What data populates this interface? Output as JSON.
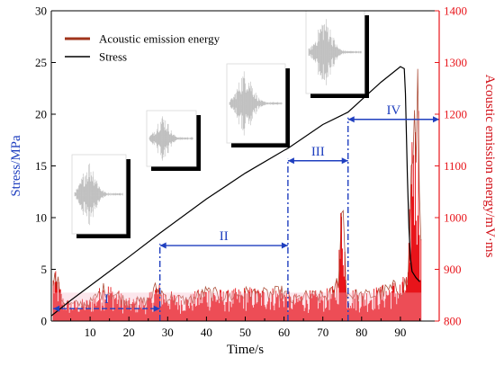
{
  "chart_data": {
    "type": "line",
    "xlabel": "Time/s",
    "ylabel_left": "Stress/MPa",
    "ylabel_right": "Acoustic emission energy/mV·ms",
    "xlim": [
      0,
      100
    ],
    "ylim_left": [
      0,
      30
    ],
    "ylim_right": [
      800,
      1400
    ],
    "x_ticks": [
      "10",
      "20",
      "30",
      "40",
      "50",
      "60",
      "70",
      "80",
      "90"
    ],
    "y_left_ticks": [
      "0",
      "5",
      "10",
      "15",
      "20",
      "25",
      "30"
    ],
    "y_right_ticks": [
      "800",
      "900",
      "1000",
      "1100",
      "1200",
      "1300",
      "1400"
    ],
    "legend": [
      {
        "name": "Acoustic emission energy",
        "color": "#a0341b"
      },
      {
        "name": "Stress",
        "color": "#000000"
      }
    ],
    "series": [
      {
        "name": "Stress",
        "axis": "left",
        "x": [
          0,
          5,
          10,
          20,
          28,
          40,
          50,
          60,
          61,
          70,
          76.5,
          80,
          85,
          90,
          91,
          91.3,
          91.8,
          92.2,
          92.6,
          93,
          94,
          95
        ],
        "y": [
          0.5,
          2.0,
          3.4,
          6.2,
          8.5,
          11.8,
          14.3,
          16.5,
          16.7,
          19.0,
          20.2,
          21.4,
          23.1,
          24.6,
          24.4,
          22.0,
          14.0,
          9.0,
          6.0,
          4.8,
          4.2,
          3.8
        ]
      },
      {
        "name": "Acoustic emission energy",
        "axis": "right",
        "x": [
          0.5,
          1.5,
          3,
          5,
          10,
          14,
          20,
          25,
          27,
          30,
          35,
          40,
          45,
          50,
          55,
          60,
          62,
          65,
          70,
          73,
          74,
          74.5,
          75,
          75.5,
          76,
          80,
          85,
          88,
          90,
          92,
          93,
          93.5,
          94,
          94.5,
          95,
          95.5
        ],
        "y": [
          900,
          895,
          850,
          840,
          845,
          880,
          845,
          850,
          880,
          860,
          850,
          870,
          860,
          868,
          865,
          870,
          850,
          860,
          860,
          870,
          910,
          1010,
          1080,
          1040,
          870,
          860,
          870,
          880,
          880,
          900,
          1220,
          1300,
          1160,
          1310,
          1150,
          880
        ]
      }
    ],
    "stages": [
      {
        "label": "I",
        "x_start": 0.5,
        "x_end": 28,
        "y": 1.2
      },
      {
        "label": "II",
        "x_start": 28,
        "x_end": 61,
        "y": 7.3
      },
      {
        "label": "III",
        "x_start": 61,
        "x_end": 76.5,
        "y": 15.5
      },
      {
        "label": "IV",
        "x_start": 76.5,
        "x_end": 100,
        "y": 19.5
      }
    ]
  }
}
